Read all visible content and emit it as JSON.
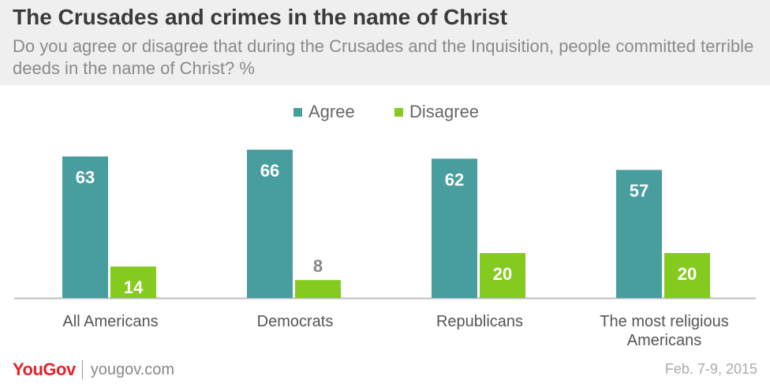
{
  "header": {
    "title": "The Crusades and crimes in the name of Christ",
    "subtitle": "Do you agree or disagree that during the Crusades and the Inquisition, people committed terrible deeds in the name of Christ? %"
  },
  "chart_data": {
    "type": "bar",
    "categories": [
      "All Americans",
      "Democrats",
      "Republicans",
      "The most religious Americans"
    ],
    "series": [
      {
        "name": "Agree",
        "values": [
          63,
          66,
          62,
          57
        ],
        "color": "#489e9e"
      },
      {
        "name": "Disagree",
        "values": [
          14,
          8,
          20,
          20
        ],
        "color": "#85cb1f"
      }
    ],
    "title": "The Crusades and crimes in the name of Christ",
    "xlabel": "",
    "ylabel": "",
    "ylim": [
      0,
      70
    ],
    "grid": false,
    "legend": "top-center",
    "data_labels": true
  },
  "footer": {
    "brand": "YouGov",
    "url": "yougov.com",
    "date": "Feb. 7-9, 2015"
  }
}
